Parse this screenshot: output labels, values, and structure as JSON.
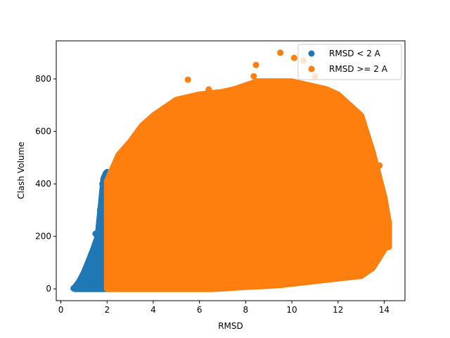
{
  "chart_data": {
    "type": "scatter",
    "xlabel": "RMSD",
    "ylabel": "Clash Volume",
    "xlim": [
      -0.2,
      14.9
    ],
    "ylim": [
      -45,
      945
    ],
    "xticks": [
      0,
      2,
      4,
      6,
      8,
      10,
      12,
      14
    ],
    "yticks": [
      0,
      200,
      400,
      600,
      800
    ],
    "grid": false,
    "legend_position": "top-right",
    "series": [
      {
        "name": "RMSD < 2 A",
        "color": "#1f77b4",
        "envelope": {
          "x": [
            0.6,
            0.8,
            1.0,
            1.2,
            1.4,
            1.6,
            1.75,
            1.85,
            1.95,
            2.0
          ],
          "y_min": [
            0,
            0,
            0,
            0,
            0,
            0,
            0,
            0,
            0,
            0
          ],
          "y_max": [
            5,
            28,
            62,
            105,
            150,
            200,
            330,
            420,
            440,
            445
          ]
        },
        "values": [
          {
            "x": 0.55,
            "y": 2
          },
          {
            "x": 0.9,
            "y": 40
          },
          {
            "x": 1.5,
            "y": 210
          },
          {
            "x": 1.7,
            "y": 300
          },
          {
            "x": 1.8,
            "y": 400
          },
          {
            "x": 1.95,
            "y": 440
          }
        ]
      },
      {
        "name": "RMSD >= 2 A",
        "color": "#ff7f0e",
        "envelope": {
          "x": [
            2.0,
            2.5,
            3.0,
            3.5,
            4.0,
            4.5,
            5.0,
            5.5,
            6.0,
            6.5,
            7.0,
            7.5,
            8.0,
            8.5,
            9.0,
            9.5,
            10.0,
            10.5,
            11.0,
            11.5,
            12.0,
            12.5,
            13.0,
            13.5,
            14.0,
            14.2
          ],
          "y_min": [
            0,
            0,
            0,
            0,
            0,
            0,
            0,
            0,
            0,
            0,
            2,
            5,
            8,
            10,
            12,
            15,
            20,
            25,
            30,
            35,
            40,
            45,
            50,
            80,
            150,
            170
          ],
          "y_max": [
            410,
            510,
            560,
            620,
            660,
            690,
            720,
            730,
            740,
            745,
            750,
            760,
            775,
            790,
            790,
            790,
            790,
            780,
            770,
            760,
            740,
            700,
            660,
            520,
            350,
            250
          ]
        },
        "values": [
          {
            "x": 5.5,
            "y": 797
          },
          {
            "x": 6.4,
            "y": 760
          },
          {
            "x": 8.35,
            "y": 810
          },
          {
            "x": 8.45,
            "y": 853
          },
          {
            "x": 9.5,
            "y": 900
          },
          {
            "x": 10.1,
            "y": 880
          },
          {
            "x": 10.5,
            "y": 870
          },
          {
            "x": 11.0,
            "y": 810
          },
          {
            "x": 13.8,
            "y": 470
          },
          {
            "x": 14.2,
            "y": 160
          }
        ]
      }
    ]
  }
}
